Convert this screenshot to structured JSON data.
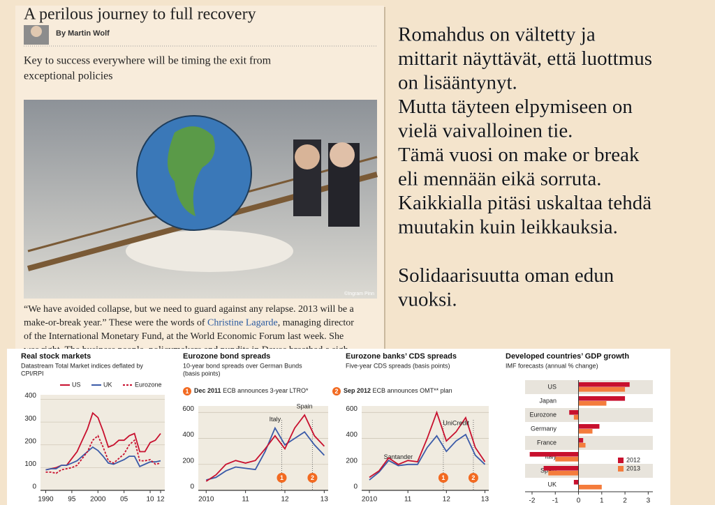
{
  "article": {
    "title": "A perilous journey to full recovery",
    "byline": "By Martin Wolf",
    "dek": [
      "Key to success everywhere will be timing the exit from",
      "exceptional policies"
    ],
    "image_credit": "©Ingram Pinn",
    "body": [
      [
        "“We have avoided collapse, but we need to guard against any relapse. 2013 will be a"
      ],
      [
        "make-or-break year.” These were the words of ",
        "Christine Lagarde",
        ", managing director"
      ],
      [
        "of the International Monetary Fund, at the World Economic Forum last week. She"
      ],
      [
        "was right. The business people, policymakers and pundits in Davos breathed a sigh"
      ]
    ]
  },
  "slide_text": [
    [
      "Romahdus on vältetty ja",
      "mittarit  näyttävät, että luottmus",
      "on lisääntynyt.",
      "Mutta täyteen elpymiseen on",
      "vielä vaivalloinen tie.",
      "Tämä vuosi on make or break",
      "eli mennään eikä sorruta.",
      "Kaikkialla pitäsi uskaltaa tehdä",
      "muutakin kuin leikkauksia."
    ],
    [
      "Solidaarisuutta oman edun",
      "vuoksi."
    ]
  ],
  "chart_data": [
    {
      "type": "line",
      "title": "Real stock markets",
      "subtitle": [
        "Datastream Total Market indices deflated by",
        "CPI/RPI"
      ],
      "x": [
        1990,
        1991,
        1992,
        1993,
        1994,
        1995,
        1996,
        1997,
        1998,
        1999,
        2000,
        2001,
        2002,
        2003,
        2004,
        2005,
        2006,
        2007,
        2008,
        2009,
        2010,
        2011,
        2012
      ],
      "xlim": [
        1989,
        2012.8
      ],
      "xticks": [
        1990,
        {
          "value": 1995,
          "label": "95"
        },
        2000,
        {
          "value": 2005,
          "label": "05"
        },
        {
          "value": 2010,
          "label": "10"
        },
        {
          "value": 2012,
          "label": "12"
        }
      ],
      "ylim": [
        0,
        420
      ],
      "yticks": [
        0,
        100,
        200,
        300,
        400
      ],
      "legend": "top",
      "series": [
        {
          "name": "US",
          "color": "#c8102e",
          "values": [
            90,
            95,
            100,
            110,
            110,
            140,
            170,
            220,
            270,
            340,
            320,
            260,
            190,
            200,
            220,
            220,
            240,
            250,
            170,
            170,
            210,
            220,
            250
          ]
        },
        {
          "name": "UK",
          "color": "#3a5aa8",
          "values": [
            90,
            95,
            95,
            110,
            110,
            120,
            130,
            150,
            170,
            190,
            175,
            150,
            120,
            115,
            125,
            135,
            150,
            150,
            105,
            115,
            125,
            125,
            130
          ]
        },
        {
          "name": "Eurozone",
          "color": "#c8102e",
          "style": "dashed",
          "values": [
            80,
            80,
            75,
            90,
            95,
            100,
            110,
            140,
            170,
            220,
            240,
            190,
            130,
            120,
            140,
            160,
            200,
            220,
            130,
            130,
            135,
            115,
            120
          ]
        }
      ]
    },
    {
      "type": "line",
      "title": "Eurozone bond spreads",
      "subtitle": [
        "10-year bond spreads over German Bunds",
        "(basis points)"
      ],
      "x": [
        2010,
        2010.25,
        2010.5,
        2010.75,
        2011,
        2011.25,
        2011.5,
        2011.75,
        2012,
        2012.25,
        2012.5,
        2012.75,
        2013
      ],
      "xlim": [
        2009.8,
        2013.1
      ],
      "xticks": [
        2010,
        {
          "value": 2011,
          "label": "11"
        },
        {
          "value": 2012,
          "label": "12"
        },
        {
          "value": 2013,
          "label": "13"
        }
      ],
      "ylim": [
        0,
        650
      ],
      "yticks": [
        0,
        200,
        400,
        600
      ],
      "series": [
        {
          "name": "Italy",
          "color": "#3a5aa8",
          "values": [
            80,
            100,
            150,
            180,
            170,
            160,
            300,
            480,
            350,
            400,
            450,
            350,
            270
          ]
        },
        {
          "name": "Spain",
          "color": "#c8102e",
          "values": [
            70,
            120,
            200,
            230,
            210,
            230,
            320,
            420,
            320,
            480,
            580,
            420,
            340
          ]
        }
      ],
      "events": [
        {
          "x": 2011.92,
          "label": "1"
        },
        {
          "x": 2012.7,
          "label": "2"
        }
      ],
      "notes": [
        {
          "label": "1",
          "date": "Dec 2011",
          "text": "ECB announces 3-year LTRO*"
        },
        {
          "label": "2",
          "date": "Sep 2012",
          "text": "ECB announces OMT** plan"
        }
      ]
    },
    {
      "type": "line",
      "title": "Eurozone banks’ CDS spreads",
      "subtitle": [
        "Five-year CDS spreads (basis points)"
      ],
      "x": [
        2010,
        2010.25,
        2010.5,
        2010.75,
        2011,
        2011.25,
        2011.5,
        2011.75,
        2012,
        2012.25,
        2012.5,
        2012.75,
        2013
      ],
      "xlim": [
        2009.8,
        2013.1
      ],
      "xticks": [
        2010,
        {
          "value": 2011,
          "label": "11"
        },
        {
          "value": 2012,
          "label": "12"
        },
        {
          "value": 2013,
          "label": "13"
        }
      ],
      "ylim": [
        0,
        650
      ],
      "yticks": [
        0,
        200,
        400,
        600
      ],
      "series": [
        {
          "name": "Santander",
          "color": "#3a5aa8",
          "values": [
            80,
            140,
            230,
            190,
            200,
            200,
            330,
            420,
            300,
            380,
            430,
            270,
            200
          ]
        },
        {
          "name": "UniCredit",
          "color": "#c8102e",
          "values": [
            100,
            150,
            250,
            200,
            230,
            220,
            400,
            600,
            380,
            450,
            560,
            330,
            220
          ]
        }
      ],
      "events": [
        {
          "x": 2011.92,
          "label": "1"
        },
        {
          "x": 2012.7,
          "label": "2"
        }
      ]
    },
    {
      "type": "hbar",
      "title": "Developed countries’ GDP growth",
      "subtitle": [
        "IMF forecasts (annual % change)"
      ],
      "categories": [
        "US",
        "Japan",
        "Eurozone",
        "Germany",
        "France",
        "Italy",
        "Spain",
        "UK"
      ],
      "xlim": [
        -2.3,
        3.2
      ],
      "xticks": [
        -2,
        -1,
        0,
        1,
        2,
        3
      ],
      "legend": "bottom-right",
      "series": [
        {
          "name": "2012",
          "color": "#c8102e",
          "values": [
            2.2,
            2.0,
            -0.4,
            0.9,
            0.2,
            -2.1,
            -1.5,
            -0.2
          ]
        },
        {
          "name": "2013",
          "color": "#f47c3c",
          "values": [
            2.0,
            1.2,
            -0.2,
            0.6,
            0.3,
            -1.0,
            -1.3,
            1.0
          ]
        }
      ]
    }
  ]
}
